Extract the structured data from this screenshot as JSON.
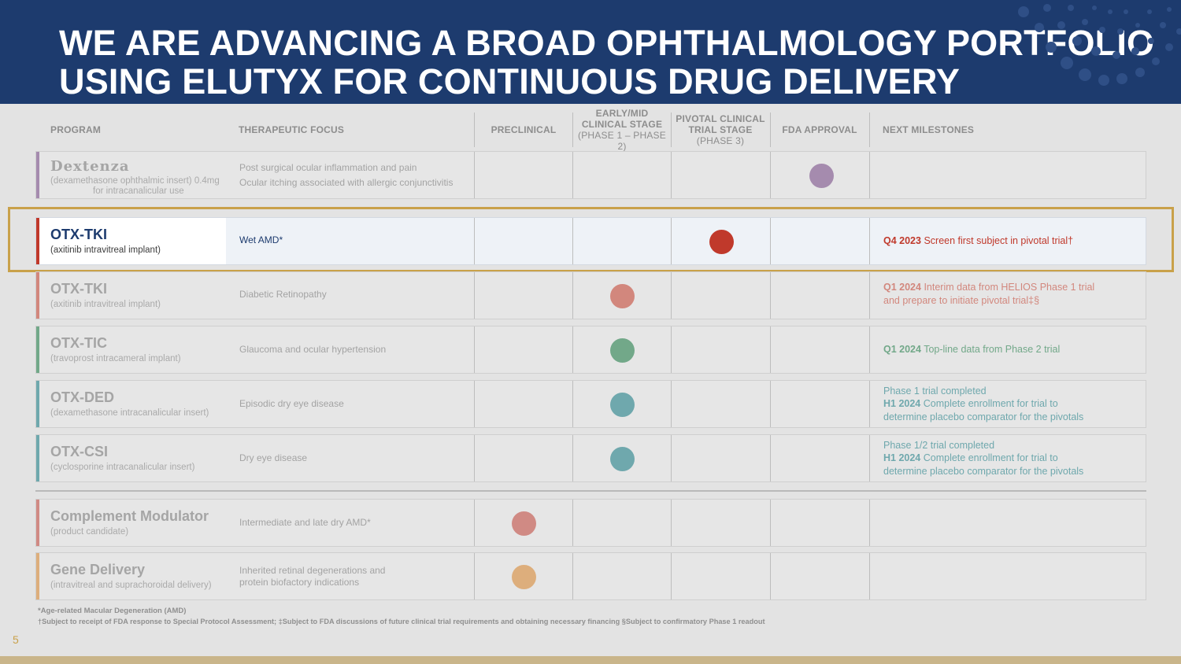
{
  "header": {
    "title_line1": "WE ARE ADVANCING A BROAD OPHTHALMOLOGY PORTFOLIO",
    "title_line2": "USING ELUTYX FOR CONTINUOUS DRUG DELIVERY"
  },
  "columns": {
    "program": "PROGRAM",
    "focus": "THERAPEUTIC FOCUS",
    "preclinical": "PRECLINICAL",
    "early_line1": "EARLY/MID",
    "early_line2": "CLINICAL STAGE",
    "early_sub": "(PHASE 1 – PHASE 2)",
    "pivotal_line1": "PIVOTAL CLINICAL",
    "pivotal_line2": "TRIAL STAGE",
    "pivotal_sub": "(PHASE 3)",
    "fda": "FDA APPROVAL",
    "milestones": "NEXT MILESTONES"
  },
  "rows": [
    {
      "name": "Dextenza",
      "desc_line1": "(dexamethasone ophthalmic insert) 0.4mg",
      "desc_line2": "for intracanalicular use",
      "focus_line1": "Post surgical ocular inflammation and pain",
      "focus_line2": "Ocular itching associated with allergic conjunctivitis",
      "stage": "FDA APPROVAL",
      "color": "#a58bae",
      "milestone_bold": "",
      "milestone_text": ""
    },
    {
      "name": "OTX-TKI",
      "desc": "(axitinib intravitreal implant)",
      "focus": "Wet AMD*",
      "stage": "PIVOTAL CLINICAL TRIAL STAGE",
      "color": "#c0392b",
      "milestone_bold": "Q4 2023",
      "milestone_text": " Screen first subject in pivotal trial†"
    },
    {
      "name": "OTX-TKI",
      "desc": "(axitinib intravitreal implant)",
      "focus": "Diabetic Retinopathy",
      "stage": "EARLY/MID CLINICAL STAGE",
      "color": "#d2877d",
      "milestone_bold": "Q1 2024",
      "milestone_text": " Interim data from HELIOS Phase 1 trial",
      "milestone_line2": "and prepare to initiate pivotal trial‡§"
    },
    {
      "name": "OTX-TIC",
      "desc": "(travoprost intracameral implant)",
      "focus": "Glaucoma and ocular hypertension",
      "stage": "EARLY/MID CLINICAL STAGE",
      "color": "#72a889",
      "milestone_bold": "Q1 2024",
      "milestone_text": " Top-line data from Phase 2 trial"
    },
    {
      "name": "OTX-DED",
      "desc": "(dexamethasone intracanalicular insert)",
      "focus": "Episodic dry eye disease",
      "stage": "EARLY/MID CLINICAL STAGE",
      "color": "#6fa8ad",
      "milestone_pre": "Phase 1 trial completed",
      "milestone_bold": "H1 2024",
      "milestone_text": " Complete enrollment for trial to",
      "milestone_line2": "determine placebo comparator for the pivotals"
    },
    {
      "name": "OTX-CSI",
      "desc": "(cyclosporine intracanalicular insert)",
      "focus": "Dry eye disease",
      "stage": "EARLY/MID CLINICAL STAGE",
      "color": "#6fa8ad",
      "milestone_pre": "Phase 1/2 trial completed",
      "milestone_bold": "H1 2024",
      "milestone_text": " Complete enrollment for trial to",
      "milestone_line2": "determine placebo comparator for the pivotals"
    },
    {
      "name": "Complement Modulator",
      "desc": "(product candidate)",
      "focus": "Intermediate and late dry AMD*",
      "stage": "PRECLINICAL",
      "color": "#d08a84"
    },
    {
      "name": "Gene Delivery",
      "desc": "(intravitreal and suprachoroidal delivery)",
      "focus_line1": "Inherited retinal degenerations and",
      "focus_line2": "protein biofactory indications",
      "stage": "PRECLINICAL",
      "color": "#ddae7c"
    }
  ],
  "accents": [
    "#a58bae",
    "#c0392b",
    "#d2877d",
    "#72a889",
    "#6fa8ad",
    "#6fa8ad",
    "#d08a84",
    "#ddae7c"
  ],
  "footnotes": {
    "line1": "*Age-related Macular Degeneration (AMD)",
    "line2": "†Subject to receipt of FDA response to Special Protocol Assessment; ‡Subject to FDA discussions of future clinical trial requirements and obtaining necessary financing §Subject to confirmatory Phase 1 readout"
  },
  "page_number": "5"
}
